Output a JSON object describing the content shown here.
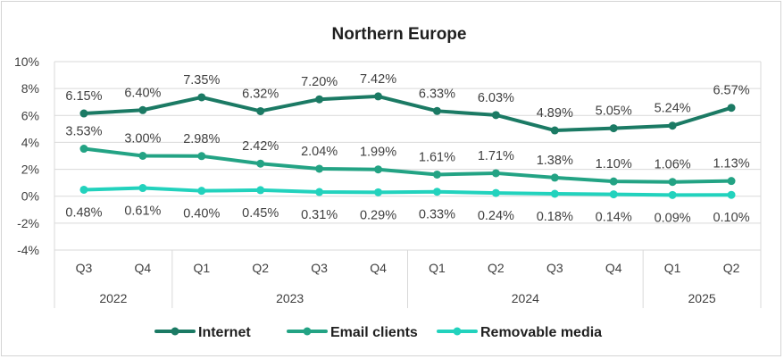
{
  "chart_data": {
    "type": "line",
    "title": "Northern Europe",
    "categories": [
      "Q3",
      "Q4",
      "Q1",
      "Q2",
      "Q3",
      "Q4",
      "Q1",
      "Q2",
      "Q3",
      "Q4",
      "Q1",
      "Q2"
    ],
    "years": [
      {
        "label": "2022",
        "start": 0,
        "end": 1
      },
      {
        "label": "2023",
        "start": 2,
        "end": 5
      },
      {
        "label": "2024",
        "start": 6,
        "end": 9
      },
      {
        "label": "2025",
        "start": 10,
        "end": 11
      }
    ],
    "ylim": [
      -4,
      10
    ],
    "yticks": [
      -4,
      -2,
      0,
      2,
      4,
      6,
      8,
      10
    ],
    "ytick_labels": [
      "-4%",
      "-2%",
      "0%",
      "2%",
      "4%",
      "6%",
      "8%",
      "10%"
    ],
    "series": [
      {
        "name": "Internet",
        "color": "#1b7a64",
        "label_position": "above",
        "values": [
          6.15,
          6.4,
          7.35,
          6.32,
          7.2,
          7.42,
          6.33,
          6.03,
          4.89,
          5.05,
          5.24,
          6.57
        ],
        "labels": [
          "6.15%",
          "6.40%",
          "7.35%",
          "6.32%",
          "7.20%",
          "7.42%",
          "6.33%",
          "6.03%",
          "4.89%",
          "5.05%",
          "5.24%",
          "6.57%"
        ]
      },
      {
        "name": "Email clients",
        "color": "#23a384",
        "label_position": "above",
        "values": [
          3.53,
          3.0,
          2.98,
          2.42,
          2.04,
          1.99,
          1.61,
          1.71,
          1.38,
          1.1,
          1.06,
          1.13
        ],
        "labels": [
          "3.53%",
          "3.00%",
          "2.98%",
          "2.42%",
          "2.04%",
          "1.99%",
          "1.61%",
          "1.71%",
          "1.38%",
          "1.10%",
          "1.06%",
          "1.13%"
        ]
      },
      {
        "name": "Removable media",
        "color": "#22d2bd",
        "label_position": "below",
        "values": [
          0.48,
          0.61,
          0.4,
          0.45,
          0.31,
          0.29,
          0.33,
          0.24,
          0.18,
          0.14,
          0.09,
          0.1
        ],
        "labels": [
          "0.48%",
          "0.61%",
          "0.40%",
          "0.45%",
          "0.31%",
          "0.29%",
          "0.33%",
          "0.24%",
          "0.18%",
          "0.14%",
          "0.09%",
          "0.10%"
        ]
      }
    ],
    "legend": [
      "Internet",
      "Email clients",
      "Removable media"
    ],
    "legend_position": "bottom",
    "grid": true
  }
}
